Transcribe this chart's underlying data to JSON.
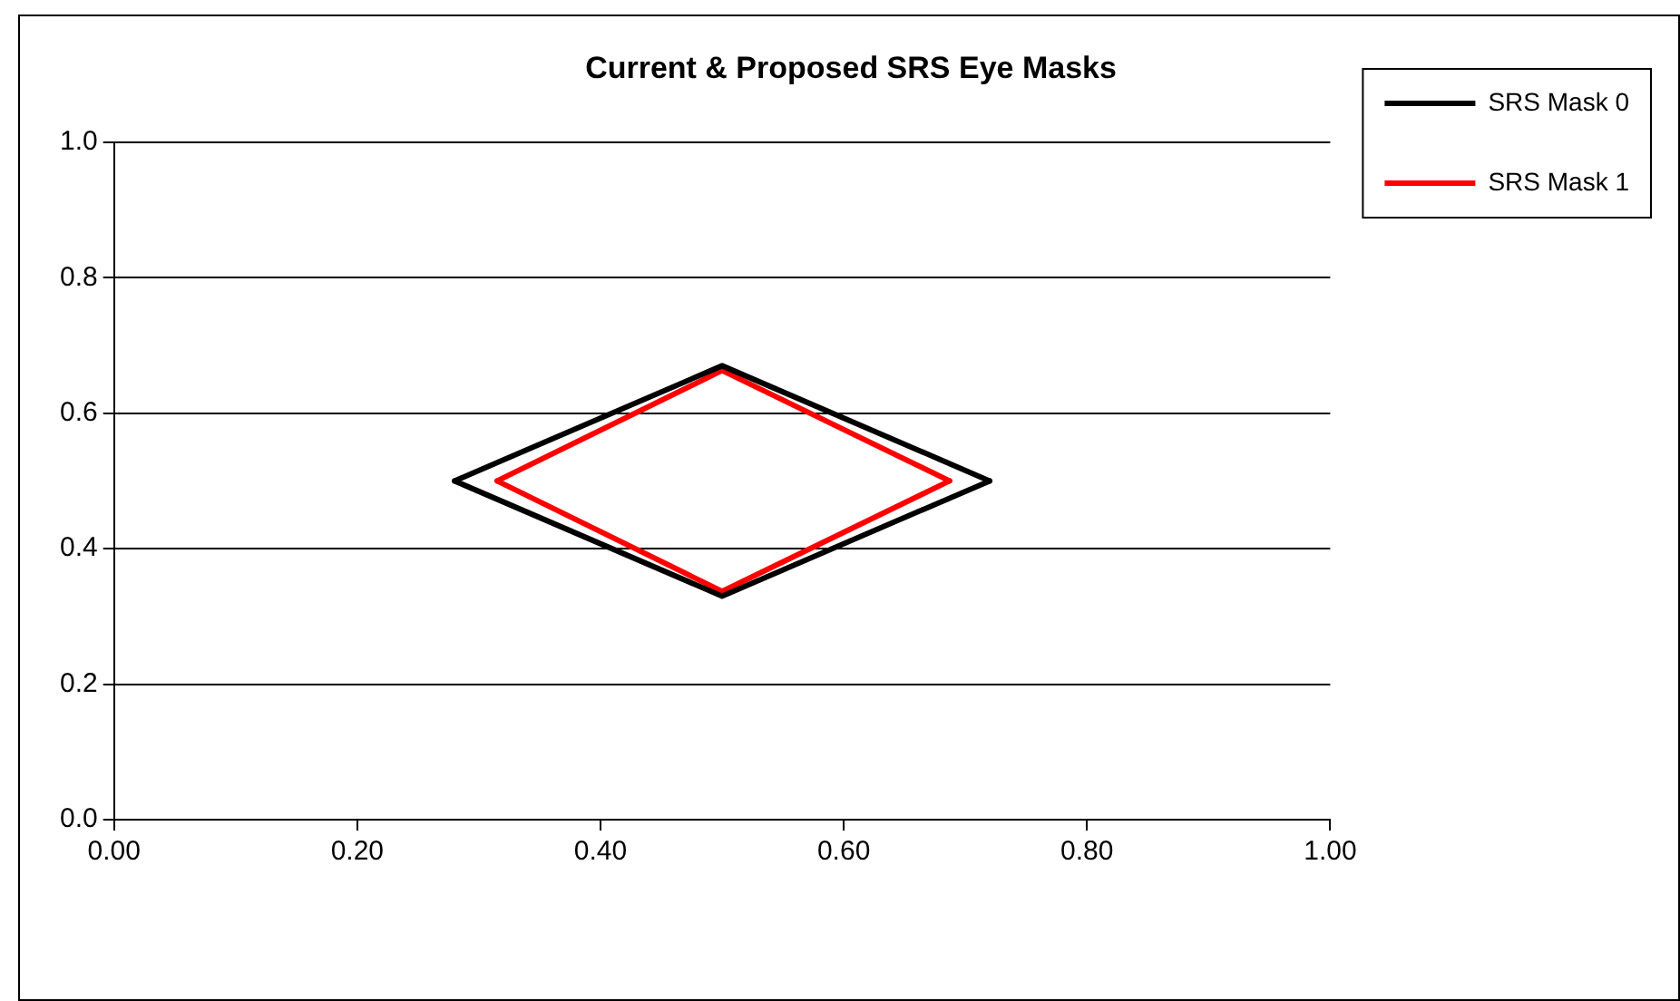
{
  "chart_data": {
    "type": "line",
    "title": "Current & Proposed SRS Eye Masks",
    "series": [
      {
        "name": "SRS Mask 0",
        "color": "#000000",
        "x": [
          0.28,
          0.5,
          0.72
        ],
        "values": [
          0.5,
          0.67,
          0.5
        ]
      },
      {
        "color": "#000000",
        "x": [
          0.28,
          0.5,
          0.72
        ],
        "values": [
          0.5,
          0.33,
          0.5
        ]
      },
      {
        "name": "SRS Mask 1",
        "color": "#ff0000",
        "x": [
          0.315,
          0.5,
          0.687
        ],
        "values": [
          0.5,
          0.663,
          0.5
        ]
      },
      {
        "color": "#ff0000",
        "x": [
          0.315,
          0.5,
          0.687
        ],
        "values": [
          0.5,
          0.337,
          0.5
        ]
      }
    ],
    "xlim": [
      0,
      1
    ],
    "xticks": [
      {
        "value": 0,
        "label": "0.00"
      },
      {
        "value": 0.2,
        "label": "0.20"
      },
      {
        "value": 0.4,
        "label": "0.40"
      },
      {
        "value": 0.6,
        "label": "0.60"
      },
      {
        "value": 0.8,
        "label": "0.80"
      },
      {
        "value": 1,
        "label": "1.00"
      }
    ],
    "ylim": [
      0,
      1
    ],
    "yticks": [
      {
        "value": 0,
        "label": "0.0"
      },
      {
        "value": 0.2,
        "label": "0.2"
      },
      {
        "value": 0.4,
        "label": "0.4"
      },
      {
        "value": 0.6,
        "label": "0.6"
      },
      {
        "value": 0.8,
        "label": "0.8"
      },
      {
        "value": 1,
        "label": "1.0"
      }
    ],
    "grid": "y",
    "legend": "right",
    "marker": "none",
    "line_style": "solid"
  }
}
